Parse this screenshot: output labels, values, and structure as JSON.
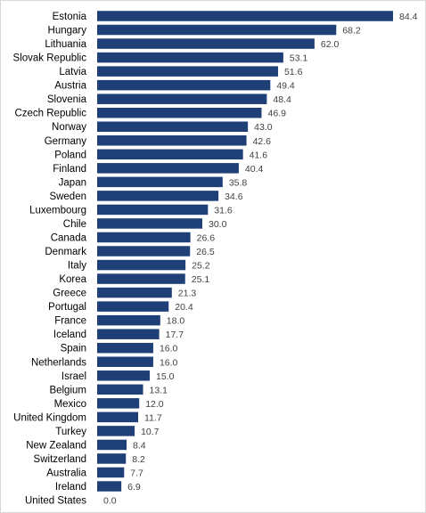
{
  "chart_data": {
    "type": "bar",
    "orientation": "horizontal",
    "title": "",
    "xlabel": "",
    "ylabel": "",
    "xlim": [
      0,
      90
    ],
    "grid": false,
    "legend": "none",
    "bar_color": "#1f3f77",
    "categories": [
      "Estonia",
      "Hungary",
      "Lithuania",
      "Slovak Republic",
      "Latvia",
      "Austria",
      "Slovenia",
      "Czech Republic",
      "Norway",
      "Germany",
      "Poland",
      "Finland",
      "Japan",
      "Sweden",
      "Luxembourg",
      "Chile",
      "Canada",
      "Denmark",
      "Italy",
      "Korea",
      "Greece",
      "Portugal",
      "France",
      "Iceland",
      "Spain",
      "Netherlands",
      "Israel",
      "Belgium",
      "Mexico",
      "United Kingdom",
      "Turkey",
      "New Zealand",
      "Switzerland",
      "Australia",
      "Ireland",
      "United States"
    ],
    "values": [
      84.4,
      68.2,
      62.0,
      53.1,
      51.6,
      49.4,
      48.4,
      46.9,
      43.0,
      42.6,
      41.6,
      40.4,
      35.8,
      34.6,
      31.6,
      30.0,
      26.6,
      26.5,
      25.2,
      25.1,
      21.3,
      20.4,
      18.0,
      17.7,
      16.0,
      16.0,
      15.0,
      13.1,
      12.0,
      11.7,
      10.7,
      8.4,
      8.2,
      7.7,
      6.9,
      0.0
    ],
    "value_labels": [
      "84.4",
      "68.2",
      "62.0",
      "53.1",
      "51.6",
      "49.4",
      "48.4",
      "46.9",
      "43.0",
      "42.6",
      "41.6",
      "40.4",
      "35.8",
      "34.6",
      "31.6",
      "30.0",
      "26.6",
      "26.5",
      "25.2",
      "25.1",
      "21.3",
      "20.4",
      "18.0",
      "17.7",
      "16.0",
      "16.0",
      "15.0",
      "13.1",
      "12.0",
      "11.7",
      "10.7",
      "8.4",
      "8.2",
      "7.7",
      "6.9",
      "0.0"
    ]
  }
}
